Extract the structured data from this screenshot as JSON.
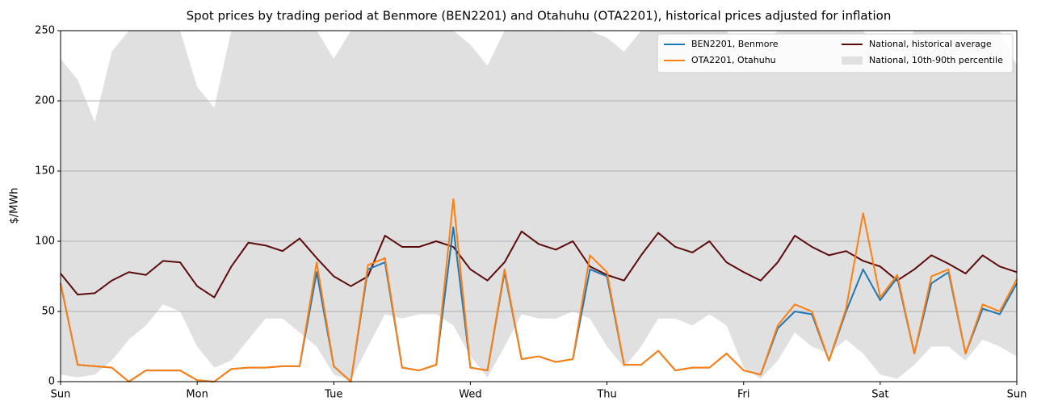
{
  "chart_data": {
    "type": "line",
    "title": "Spot prices by trading period at Benmore (BEN2201) and Otahuhu (OTA2201), historical prices adjusted for inflation",
    "y_label": "$/MWh",
    "x": [
      0,
      0.125,
      0.25,
      0.375,
      0.5,
      0.625,
      0.75,
      0.875,
      1,
      1.125,
      1.25,
      1.375,
      1.5,
      1.625,
      1.75,
      1.875,
      2,
      2.125,
      2.25,
      2.375,
      2.5,
      2.625,
      2.75,
      2.875,
      3,
      3.125,
      3.25,
      3.375,
      3.5,
      3.625,
      3.75,
      3.875,
      4,
      4.125,
      4.25,
      4.375,
      4.5,
      4.625,
      4.75,
      4.875,
      5,
      5.125,
      5.25,
      5.375,
      5.5,
      5.625,
      5.75,
      5.875,
      6,
      6.125,
      6.25,
      6.375,
      6.5,
      6.625,
      6.75,
      6.875,
      7
    ],
    "xlim": [
      0,
      7
    ],
    "xticks": [
      {
        "value": 0,
        "label": "Sun"
      },
      {
        "value": 1,
        "label": "Mon"
      },
      {
        "value": 2,
        "label": "Tue"
      },
      {
        "value": 3,
        "label": "Wed"
      },
      {
        "value": 4,
        "label": "Thu"
      },
      {
        "value": 5,
        "label": "Fri"
      },
      {
        "value": 6,
        "label": "Sat"
      },
      {
        "value": 7,
        "label": "Sun"
      }
    ],
    "ylim": [
      0,
      250
    ],
    "yticks": [
      0,
      50,
      100,
      150,
      200,
      250
    ],
    "grid": true,
    "legend": "upper right",
    "band": {
      "name": "National, 10th-90th percentile",
      "color": "#e0e0e0",
      "upper": [
        230,
        215,
        185,
        235,
        250,
        250,
        250,
        250,
        210,
        195,
        250,
        250,
        250,
        250,
        250,
        250,
        230,
        250,
        250,
        250,
        250,
        250,
        250,
        250,
        240,
        225,
        250,
        250,
        250,
        250,
        250,
        250,
        245,
        235,
        250,
        250,
        250,
        250,
        250,
        250,
        230,
        235,
        250,
        250,
        250,
        250,
        250,
        250,
        235,
        225,
        250,
        250,
        250,
        250,
        250,
        250,
        225
      ],
      "lower": [
        5,
        3,
        5,
        15,
        30,
        40,
        55,
        50,
        25,
        10,
        15,
        30,
        45,
        45,
        35,
        25,
        5,
        1,
        25,
        48,
        45,
        48,
        48,
        40,
        18,
        3,
        25,
        48,
        45,
        45,
        50,
        45,
        25,
        10,
        25,
        45,
        45,
        40,
        48,
        40,
        10,
        2,
        15,
        35,
        25,
        20,
        30,
        20,
        5,
        2,
        12,
        25,
        25,
        15,
        30,
        25,
        18
      ]
    },
    "series": [
      {
        "name": "BEN2201, Benmore",
        "color": "#1f77b4",
        "values": [
          70,
          12,
          11,
          10,
          0,
          8,
          8,
          8,
          1,
          0,
          9,
          10,
          10,
          11,
          11,
          78,
          11,
          0,
          80,
          85,
          10,
          8,
          12,
          110,
          10,
          8,
          78,
          16,
          18,
          14,
          16,
          80,
          75,
          12,
          12,
          22,
          8,
          10,
          10,
          20,
          8,
          5,
          38,
          50,
          48,
          15,
          50,
          80,
          58,
          74,
          20,
          70,
          78,
          20,
          52,
          48,
          70
        ]
      },
      {
        "name": "OTA2201, Otahuhu",
        "color": "#ff7f0e",
        "values": [
          70,
          12,
          11,
          10,
          0,
          8,
          8,
          8,
          1,
          0,
          9,
          10,
          10,
          11,
          11,
          85,
          11,
          0,
          83,
          88,
          10,
          8,
          12,
          130,
          10,
          8,
          80,
          16,
          18,
          14,
          16,
          90,
          78,
          12,
          12,
          22,
          8,
          10,
          10,
          20,
          8,
          5,
          40,
          55,
          50,
          15,
          52,
          120,
          60,
          76,
          20,
          75,
          80,
          20,
          55,
          50,
          73
        ]
      },
      {
        "name": "National, historical average",
        "color": "#5c0a0a",
        "values": [
          77,
          62,
          63,
          72,
          78,
          76,
          86,
          85,
          68,
          60,
          82,
          99,
          97,
          93,
          102,
          88,
          75,
          68,
          75,
          104,
          96,
          96,
          100,
          96,
          80,
          72,
          85,
          107,
          98,
          94,
          100,
          82,
          76,
          72,
          90,
          106,
          96,
          92,
          100,
          85,
          78,
          72,
          85,
          104,
          96,
          90,
          93,
          86,
          82,
          72,
          80,
          90,
          84,
          77,
          90,
          82,
          78
        ]
      }
    ]
  }
}
